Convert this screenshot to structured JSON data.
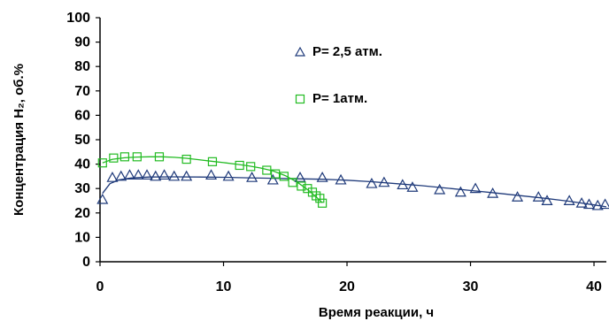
{
  "chart_data": {
    "type": "scatter",
    "title": "",
    "xlabel": "Время реакции, ч",
    "ylabel": "Концентрация H₂, об.%",
    "xlim": [
      0,
      41
    ],
    "ylim": [
      0,
      100
    ],
    "xticks": [
      "0",
      "10",
      "20",
      "30",
      "40"
    ],
    "yticks": [
      "0",
      "10",
      "20",
      "30",
      "40",
      "50",
      "60",
      "70",
      "80",
      "90",
      "100"
    ],
    "grid": false,
    "legend_position": "top-center",
    "series": [
      {
        "name": "P= 2,5 атм.",
        "marker": "triangle",
        "color": "#1f3a7a",
        "x": [
          0.2,
          1.0,
          1.7,
          2.4,
          3.1,
          3.8,
          4.5,
          5.2,
          6.0,
          7.0,
          9.0,
          10.4,
          12.3,
          14.0,
          16.2,
          18.0,
          19.5,
          22.0,
          23.0,
          24.5,
          25.3,
          27.5,
          29.2,
          30.4,
          31.8,
          33.8,
          35.5,
          36.2,
          38.0,
          39.0,
          39.6,
          40.3,
          40.9
        ],
        "y": [
          25.5,
          34.5,
          35.0,
          35.5,
          35.5,
          35.5,
          35.0,
          35.5,
          35.0,
          35.0,
          35.5,
          35.0,
          34.5,
          33.5,
          34.5,
          34.5,
          33.5,
          32.0,
          32.5,
          31.5,
          30.5,
          29.5,
          28.5,
          30.0,
          28.0,
          26.5,
          26.5,
          25.0,
          25.0,
          24.0,
          23.5,
          23.0,
          23.5
        ]
      },
      {
        "name": "P= 1атм.",
        "marker": "square",
        "color": "#22bb22",
        "x": [
          0.2,
          1.1,
          2.0,
          3.0,
          4.8,
          7.0,
          9.1,
          11.3,
          12.2,
          13.5,
          14.2,
          14.9,
          15.6,
          16.3,
          16.8,
          17.2,
          17.5,
          17.8,
          18.0
        ],
        "y": [
          40.5,
          42.5,
          43.0,
          43.0,
          43.0,
          42.0,
          41.0,
          39.5,
          39.0,
          37.5,
          36.0,
          35.0,
          32.5,
          31.0,
          30.0,
          28.5,
          27.0,
          26.0,
          24.0
        ]
      }
    ],
    "fit_lines": [
      {
        "color": "#1f3a7a",
        "x": [
          0.2,
          0.8,
          1.5,
          2.5,
          4.0,
          6.0,
          8.0,
          10.0,
          12.0,
          14.0,
          16.0,
          18.0,
          20.0,
          22.0,
          24.0,
          26.0,
          28.0,
          30.0,
          32.0,
          34.0,
          36.0,
          38.0,
          40.0,
          41.0
        ],
        "y": [
          28.0,
          32.0,
          33.5,
          34.3,
          34.7,
          34.8,
          34.7,
          34.6,
          34.4,
          34.2,
          34.0,
          33.8,
          33.4,
          32.8,
          32.0,
          31.2,
          30.2,
          29.2,
          28.2,
          27.1,
          26.0,
          24.8,
          23.3,
          22.5
        ]
      },
      {
        "color": "#22bb22",
        "x": [
          0.2,
          1.0,
          2.0,
          3.0,
          4.0,
          5.0,
          6.0,
          7.0,
          8.0,
          9.0,
          10.0,
          11.0,
          12.0,
          13.0,
          14.0,
          15.0,
          16.0,
          16.5,
          17.0,
          17.5,
          18.0
        ],
        "y": [
          40.5,
          42.0,
          42.6,
          42.9,
          43.0,
          43.0,
          42.8,
          42.4,
          41.8,
          41.2,
          40.6,
          40.0,
          39.3,
          38.4,
          37.2,
          35.3,
          32.5,
          30.7,
          28.8,
          26.6,
          24.2
        ]
      }
    ]
  }
}
